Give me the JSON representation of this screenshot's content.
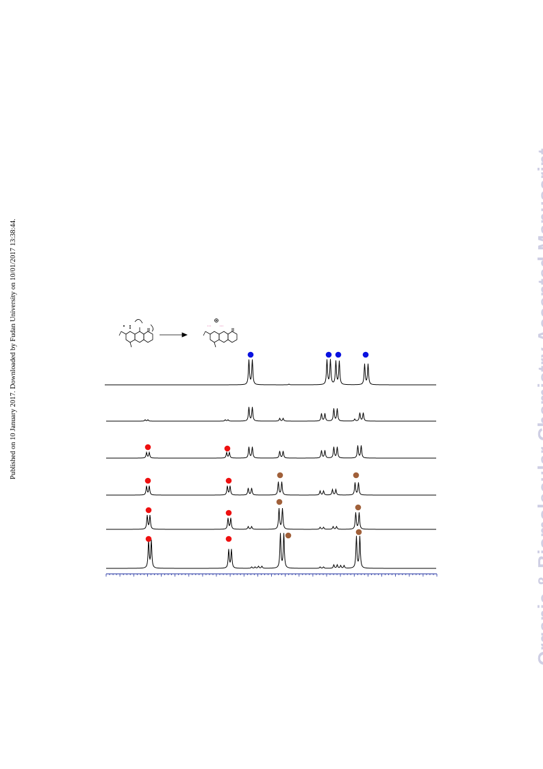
{
  "side_note": "Published on 10 January 2017. Downloaded by Fudan University on 10/01/2017 13:38:44.",
  "watermark": "Organic & Biomolecular Chemistry Accepted Manuscript",
  "colors": {
    "blue_marker": "#0a12e0",
    "red_marker": "#ee1010",
    "brown_marker": "#a0603a",
    "trace": "#000000",
    "axis": "#2030a0"
  },
  "scheme": {
    "arrow": "reaction-arrow",
    "product_charge": "⊕"
  }
}
